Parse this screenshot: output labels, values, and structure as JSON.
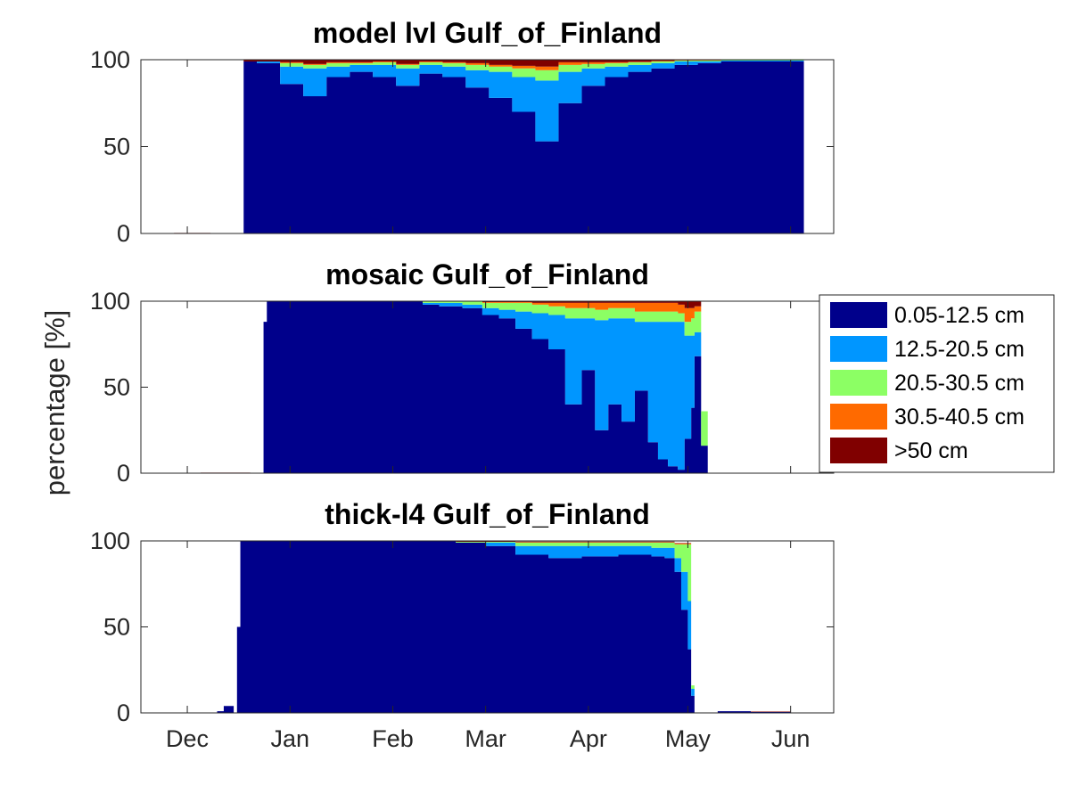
{
  "figure": {
    "ylabel": "percentage [%]"
  },
  "legend": {
    "placement": "right",
    "entries": [
      {
        "label": "0.05-12.5 cm",
        "color": "#00008b"
      },
      {
        "label": "12.5-20.5 cm",
        "color": "#0096ff"
      },
      {
        "label": "20.5-30.5 cm",
        "color": "#8cff64"
      },
      {
        "label": "30.5-40.5 cm",
        "color": "#ff6a00"
      },
      {
        "label": ">50 cm",
        "color": "#800000"
      }
    ]
  },
  "chart_data": [
    {
      "type": "area",
      "stacked": true,
      "title": "model lvl Gulf_of_Finland",
      "xlabel": "",
      "ylabel": "percentage [%]",
      "ylim": [
        0,
        100
      ],
      "yticks": [
        0,
        50,
        100
      ],
      "xlim": [
        "2020-11-17",
        "2021-06-14"
      ],
      "xticks": [
        "Dec",
        "Jan",
        "Feb",
        "Mar",
        "Apr",
        "May",
        "Jun"
      ],
      "show_xtick_labels": false,
      "grid": false,
      "x": [
        "2020-11-27",
        "2020-12-08",
        "2020-12-18",
        "2020-12-22",
        "2020-12-29",
        "2021-01-05",
        "2021-01-12",
        "2021-01-19",
        "2021-01-26",
        "2021-02-02",
        "2021-02-09",
        "2021-02-16",
        "2021-02-23",
        "2021-03-02",
        "2021-03-09",
        "2021-03-16",
        "2021-03-23",
        "2021-03-30",
        "2021-04-06",
        "2021-04-13",
        "2021-04-20",
        "2021-04-27",
        "2021-05-04",
        "2021-05-11",
        "2021-05-18",
        "2021-05-25",
        "2021-06-02",
        "2021-06-05"
      ],
      "series": [
        {
          "name": "0.05-12.5 cm",
          "values": [
            0,
            0,
            99,
            98,
            86,
            79,
            90,
            93,
            90,
            85,
            92,
            90,
            84,
            78,
            70,
            53,
            75,
            85,
            90,
            93,
            95,
            97,
            98,
            99,
            99,
            99,
            99,
            0
          ]
        },
        {
          "name": "12.5-20.5 cm",
          "values": [
            0,
            0,
            0,
            1,
            10,
            16,
            6,
            4,
            7,
            10,
            5,
            6,
            10,
            15,
            20,
            35,
            18,
            10,
            6,
            4,
            3,
            2,
            1,
            0.5,
            0.5,
            0.5,
            0.5,
            0
          ]
        },
        {
          "name": "20.5-30.5 cm",
          "values": [
            0,
            0,
            0,
            0,
            2,
            2,
            2,
            1,
            1.5,
            2,
            1.5,
            2,
            3,
            3,
            5,
            6,
            4,
            2.5,
            2,
            1.5,
            1,
            0.5,
            0.5,
            0.3,
            0.3,
            0.3,
            0.3,
            0
          ]
        },
        {
          "name": "30.5-40.5 cm",
          "values": [
            0,
            0,
            0,
            0,
            0.5,
            0.5,
            0.5,
            0.5,
            0.5,
            0.5,
            0.5,
            0.5,
            1,
            1,
            1.5,
            2,
            1.5,
            1,
            0.5,
            0.3,
            0.3,
            0.2,
            0.2,
            0.1,
            0.1,
            0.1,
            0.1,
            0
          ]
        },
        {
          "name": ">50 cm",
          "values": [
            0.3,
            0,
            1,
            1,
            1.5,
            2.5,
            1.5,
            1.5,
            1,
            2.5,
            1,
            1.5,
            2,
            3,
            3.5,
            4,
            1.5,
            1.5,
            1.5,
            1.2,
            0.7,
            0.3,
            0.3,
            0.1,
            0.1,
            0.1,
            0.1,
            0
          ]
        }
      ]
    },
    {
      "type": "area",
      "stacked": true,
      "title": "mosaic Gulf_of_Finland",
      "xlabel": "",
      "ylabel": "percentage [%]",
      "ylim": [
        0,
        100
      ],
      "yticks": [
        0,
        50,
        100
      ],
      "xlim": [
        "2020-11-17",
        "2021-06-14"
      ],
      "xticks": [
        "Dec",
        "Jan",
        "Feb",
        "Mar",
        "Apr",
        "May",
        "Jun"
      ],
      "show_xtick_labels": false,
      "grid": false,
      "x": [
        "2020-12-05",
        "2020-12-20",
        "2020-12-24",
        "2020-12-25",
        "2021-01-05",
        "2021-01-20",
        "2021-02-05",
        "2021-02-10",
        "2021-02-15",
        "2021-02-22",
        "2021-02-28",
        "2021-03-05",
        "2021-03-10",
        "2021-03-15",
        "2021-03-20",
        "2021-03-25",
        "2021-03-30",
        "2021-04-03",
        "2021-04-07",
        "2021-04-11",
        "2021-04-15",
        "2021-04-19",
        "2021-04-22",
        "2021-04-25",
        "2021-04-28",
        "2021-04-30",
        "2021-05-02",
        "2021-05-03",
        "2021-05-05",
        "2021-05-07"
      ],
      "series": [
        {
          "name": "0.05-12.5 cm",
          "values": [
            0,
            0,
            88,
            100,
            100,
            100,
            100,
            98,
            97,
            96,
            92,
            90,
            84,
            78,
            72,
            40,
            60,
            25,
            40,
            30,
            48,
            18,
            8,
            4,
            2,
            20,
            38,
            68,
            16,
            0
          ]
        },
        {
          "name": "12.5-20.5 cm",
          "values": [
            0,
            0,
            0,
            0,
            0,
            0,
            0,
            1,
            2,
            2,
            4,
            5,
            10,
            15,
            20,
            50,
            30,
            64,
            50,
            60,
            40,
            70,
            80,
            84,
            86,
            60,
            42,
            14,
            0,
            0
          ]
        },
        {
          "name": "20.5-30.5 cm",
          "values": [
            0,
            0,
            0,
            0,
            0,
            0,
            0,
            1,
            1,
            2,
            3,
            4,
            5,
            5,
            5,
            6,
            6,
            6,
            6,
            6,
            6,
            6,
            6,
            6,
            5,
            8,
            10,
            12,
            20,
            0
          ]
        },
        {
          "name": "30.5-40.5 cm",
          "values": [
            0,
            0,
            0,
            0,
            0,
            0,
            0,
            0,
            0,
            0,
            0.5,
            0.5,
            0.5,
            1,
            2,
            3,
            3,
            4,
            3,
            3,
            5,
            5,
            5,
            5,
            5,
            8,
            6,
            3,
            0,
            0
          ]
        },
        {
          "name": ">50 cm",
          "values": [
            0.3,
            0,
            0,
            0,
            0,
            0,
            0,
            0,
            0,
            0,
            0.5,
            0.5,
            0.5,
            1,
            1,
            1,
            1,
            1,
            1,
            1,
            1,
            1,
            1,
            1,
            2,
            4,
            4,
            3,
            0,
            0
          ]
        }
      ]
    },
    {
      "type": "area",
      "stacked": true,
      "title": "thick-l4 Gulf_of_Finland",
      "xlabel": "",
      "ylabel": "",
      "ylim": [
        0,
        100
      ],
      "yticks": [
        0,
        50,
        100
      ],
      "xlim": [
        "2020-11-17",
        "2021-06-14"
      ],
      "xticks": [
        "Dec",
        "Jan",
        "Feb",
        "Mar",
        "Apr",
        "May",
        "Jun"
      ],
      "show_xtick_labels": true,
      "grid": false,
      "x": [
        "2020-12-01",
        "2020-12-10",
        "2020-12-12",
        "2020-12-15",
        "2020-12-16",
        "2020-12-17",
        "2020-12-20",
        "2021-01-10",
        "2021-02-01",
        "2021-02-20",
        "2021-03-01",
        "2021-03-10",
        "2021-03-20",
        "2021-03-30",
        "2021-04-10",
        "2021-04-20",
        "2021-04-24",
        "2021-04-27",
        "2021-04-29",
        "2021-05-01",
        "2021-05-02",
        "2021-05-03",
        "2021-05-10",
        "2021-05-20",
        "2021-06-01"
      ],
      "series": [
        {
          "name": "0.05-12.5 cm",
          "values": [
            0,
            1,
            4,
            0,
            50,
            100,
            100,
            100,
            100,
            99,
            97,
            92,
            90,
            91,
            92,
            91,
            90,
            82,
            60,
            37,
            10,
            0,
            1,
            0.5,
            0
          ],
          "note": ""
        },
        {
          "name": "12.5-20.5 cm",
          "values": [
            0,
            0,
            0,
            0,
            0,
            0,
            0,
            0,
            0,
            0,
            2,
            5,
            7,
            6,
            5,
            5,
            6,
            8,
            22,
            28,
            4,
            0,
            0,
            0,
            0
          ]
        },
        {
          "name": "20.5-30.5 cm",
          "values": [
            0,
            0,
            0,
            0,
            0,
            0,
            0,
            0,
            0,
            0.5,
            0.5,
            2,
            2,
            2,
            2,
            3,
            3,
            8,
            16,
            33,
            2,
            0,
            0,
            0,
            0
          ]
        },
        {
          "name": "30.5-40.5 cm",
          "values": [
            0,
            0,
            0,
            0,
            0,
            0,
            0,
            0,
            0,
            0,
            0,
            0.3,
            0.3,
            0.3,
            0.3,
            0.3,
            0.3,
            0.5,
            0.5,
            0.5,
            0,
            0,
            0,
            0,
            0
          ]
        },
        {
          "name": ">50 cm",
          "values": [
            0,
            0,
            0,
            0,
            0,
            0,
            0.3,
            0.3,
            0.3,
            0.3,
            0.3,
            0.3,
            0.3,
            0.3,
            0.3,
            0.3,
            0.3,
            0.3,
            0.3,
            0.3,
            0,
            0,
            0,
            0.3,
            0
          ]
        }
      ]
    }
  ]
}
